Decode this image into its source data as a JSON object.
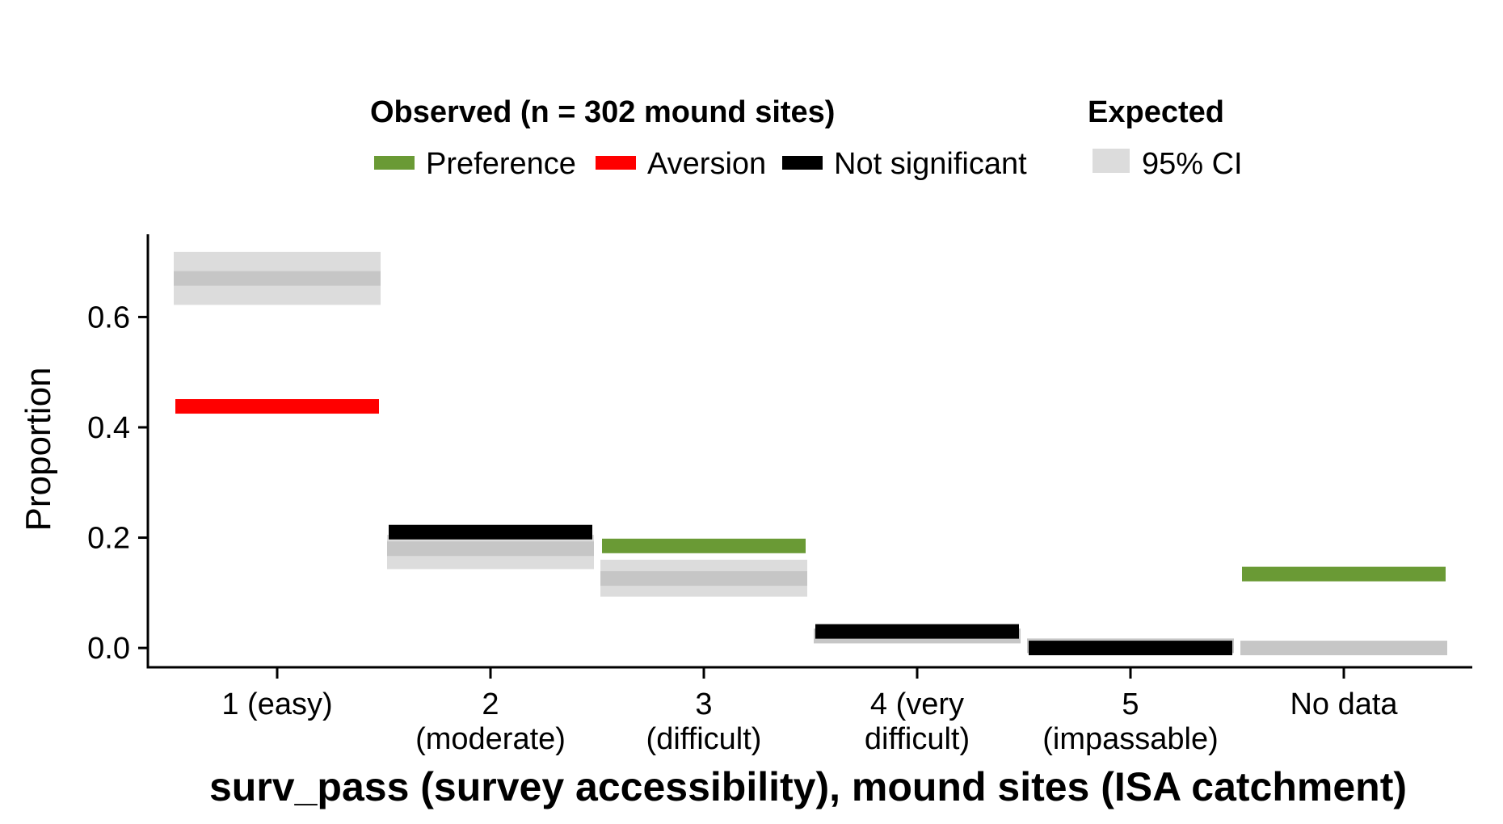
{
  "chart_data": {
    "type": "crossbar",
    "xlabel": "surv_pass (survey accessibility), mound sites (ISA catchment)",
    "ylabel": "Proportion",
    "ylim": [
      -0.035,
      0.75
    ],
    "yticks": [
      0.0,
      0.2,
      0.4,
      0.6
    ],
    "ytick_labels": [
      "0.0",
      "0.2",
      "0.4",
      "0.6"
    ],
    "categories": [
      {
        "label_lines": [
          "1 (easy)"
        ]
      },
      {
        "label_lines": [
          "2",
          "(moderate)"
        ]
      },
      {
        "label_lines": [
          "3",
          "(difficult)"
        ]
      },
      {
        "label_lines": [
          "4 (very",
          "difficult)"
        ]
      },
      {
        "label_lines": [
          "5",
          "(impassable)"
        ]
      },
      {
        "label_lines": [
          "No data"
        ]
      }
    ],
    "observed": [
      {
        "value": 0.438,
        "status": "Aversion"
      },
      {
        "value": 0.21,
        "status": "Not significant"
      },
      {
        "value": 0.185,
        "status": "Preference"
      },
      {
        "value": 0.03,
        "status": "Not significant"
      },
      {
        "value": 0.0,
        "status": "Not significant"
      },
      {
        "value": 0.134,
        "status": "Preference"
      }
    ],
    "expected": [
      {
        "mean": 0.67,
        "ci_low": 0.622,
        "ci_high": 0.718
      },
      {
        "mean": 0.18,
        "ci_low": 0.143,
        "ci_high": 0.205
      },
      {
        "mean": 0.126,
        "ci_low": 0.093,
        "ci_high": 0.16
      },
      {
        "mean": 0.022,
        "ci_low": 0.008,
        "ci_high": 0.034
      },
      {
        "mean": 0.004,
        "ci_low": -0.006,
        "ci_high": 0.014
      },
      {
        "mean": 0.0,
        "ci_low": -0.01,
        "ci_high": 0.01
      }
    ],
    "legend": {
      "placement": "top",
      "observed_title": "Observed (n = 302 mound sites)",
      "observed_items": [
        {
          "label": "Preference",
          "color": "#6a9a35"
        },
        {
          "label": "Aversion",
          "color": "#ff0000"
        },
        {
          "label": "Not significant",
          "color": "#000000"
        }
      ],
      "expected_title": "Expected",
      "expected_items": [
        {
          "label": "95% CI",
          "color": "#dcdcdc"
        }
      ]
    },
    "colors": {
      "Preference": "#6a9a35",
      "Aversion": "#ff0000",
      "Not significant": "#000000",
      "ci_fill": "#dcdcdc",
      "ci_mean": "#c6c6c6"
    },
    "grid": false
  }
}
